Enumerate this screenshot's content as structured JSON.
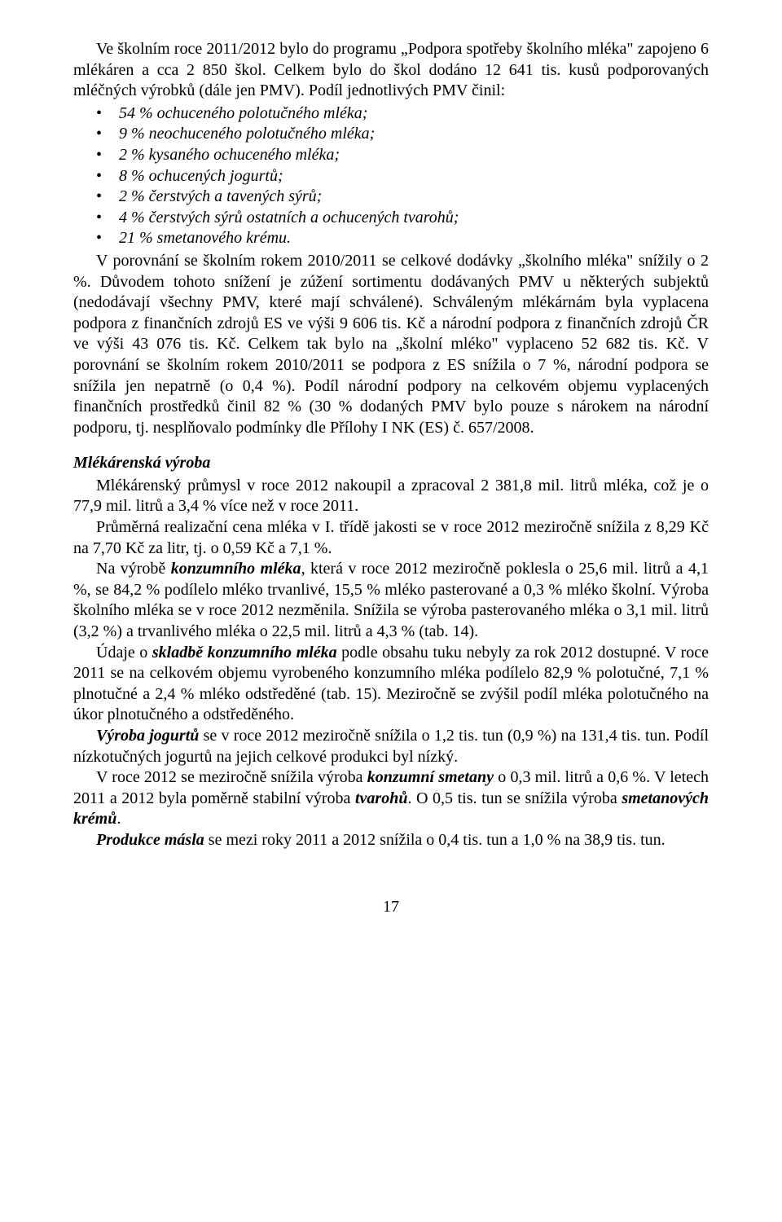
{
  "p1": "Ve školním roce 2011/2012 bylo do programu „Podpora spotřeby školního mléka\" zapojeno 6 mlékáren a cca 2 850 škol. Celkem bylo do škol dodáno 12 641 tis. kusů podporovaných mléčných výrobků (dále jen PMV). Podíl jednotlivých PMV činil:",
  "bullets": [
    "54 % ochuceného polotučného mléka;",
    "9 % neochuceného polotučného mléka;",
    "2 % kysaného ochuceného mléka;",
    "8 % ochucených jogurtů;",
    "2 % čerstvých a tavených sýrů;",
    "4 % čerstvých sýrů ostatních a ochucených tvarohů;",
    "21 % smetanového krému."
  ],
  "p2": "V porovnání se školním rokem 2010/2011 se celkové dodávky „školního mléka\" snížily o 2 %. Důvodem tohoto snížení je zúžení sortimentu dodávaných PMV u některých subjektů (nedodávají všechny PMV, které mají schválené). Schváleným mlékárnám byla vyplacena podpora z finančních zdrojů ES ve výši 9 606 tis. Kč a národní podpora z finančních zdrojů ČR ve výši 43 076 tis. Kč. Celkem tak bylo na „školní mléko\" vyplaceno 52 682 tis. Kč. V porovnání se školním rokem 2010/2011 se podpora z ES snížila o 7 %, národní podpora se snížila jen nepatrně (o 0,4 %). Podíl národní podpory na celkovém objemu vyplacených finančních prostředků činil 82 % (30 % dodaných PMV bylo pouze s nárokem na národní podporu, tj. nesplňovalo podmínky dle Přílohy I NK (ES) č. 657/2008.",
  "subhead": "Mlékárenská výroba",
  "p3": "Mlékárenský průmysl v roce 2012 nakoupil a zpracoval 2 381,8 mil. litrů mléka, což je o 77,9 mil. litrů a 3,4 % více než v roce 2011.",
  "p4": "Průměrná realizační cena mléka v I. třídě jakosti se v roce 2012 meziročně snížila z 8,29 Kč na 7,70 Kč za litr, tj. o 0,59 Kč a 7,1 %.",
  "p5a": "Na výrobě ",
  "p5b": "konzumního mléka",
  "p5c": ", která v roce 2012 meziročně poklesla o 25,6 mil. litrů a 4,1 %, se 84,2 % podílelo mléko trvanlivé, 15,5 % mléko pasterované a 0,3 % mléko školní. Výroba školního mléka se v roce 2012 nezměnila. Snížila se výroba pasterovaného mléka o 3,1 mil. litrů (3,2 %) a trvanlivého mléka o 22,5 mil. litrů a 4,3 % (tab. 14).",
  "p6a": "Údaje o ",
  "p6b": "skladbě konzumního mléka",
  "p6c": " podle obsahu tuku nebyly za rok 2012 dostupné. V roce 2011 se na celkovém objemu vyrobeného konzumního mléka podílelo 82,9 % polotučné, 7,1 % plnotučné a 2,4 % mléko odstředěné (tab. 15). Meziročně se zvýšil podíl mléka polotučného na úkor plnotučného a odstředěného.",
  "p7a": "Výroba jogurtů",
  "p7b": " se v roce 2012 meziročně snížila o 1,2 tis. tun (0,9 %) na 131,4 tis. tun. Podíl nízkotučných jogurtů na jejich celkové produkci byl nízký.",
  "p8a": "V roce 2012 se meziročně snížila výroba ",
  "p8b": "konzumní smetany",
  "p8c": " o 0,3 mil. litrů a 0,6 %. V letech 2011 a 2012 byla poměrně stabilní výroba ",
  "p8d": "tvarohů",
  "p8e": ". O 0,5 tis. tun se snížila výroba ",
  "p8f": "smetanových krémů",
  "p8g": ".",
  "p9a": "Produkce másla",
  "p9b": " se mezi roky 2011 a 2012 snížila o 0,4 tis. tun a 1,0 % na 38,9 tis. tun.",
  "pagenum": "17"
}
